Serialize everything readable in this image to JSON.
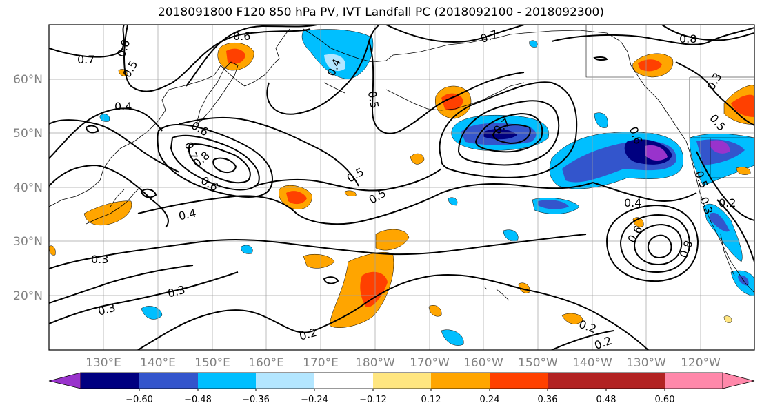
{
  "title": "2018091800 F120 850 hPa PV, IVT Landfall PC (2018092100 - 2018092300)",
  "map": {
    "lat_labels": [
      "60°N",
      "50°N",
      "40°N",
      "30°N",
      "20°N"
    ],
    "lon_labels": [
      "130°E",
      "140°E",
      "150°E",
      "160°E",
      "170°E",
      "180°W",
      "170°W",
      "160°W",
      "150°W",
      "140°W",
      "130°W",
      "120°W"
    ],
    "contour_labels": [
      "0.6",
      "0.7",
      "0.6",
      "0.5",
      "0.4",
      "0.4",
      "0.5",
      "0.7",
      "0.8",
      "0.3",
      "0.5",
      "0.6",
      "0.7",
      "0.7",
      "0.8",
      "0.6",
      "0.5",
      "0.5",
      "0.6",
      "0.4",
      "0.5",
      "0.3",
      "0.6",
      "0.8",
      "0.3",
      "0.2",
      "0.2",
      "0.3",
      "0.3",
      "0.2",
      "0.2",
      "0.2"
    ]
  },
  "colorbar": {
    "tick_labels": [
      "−0.60",
      "−0.48",
      "−0.36",
      "−0.24",
      "−0.12",
      "0.12",
      "0.24",
      "0.36",
      "0.48",
      "0.60"
    ],
    "colors": [
      "#9933cc",
      "#000080",
      "#3355cc",
      "#00bfff",
      "#b3e6ff",
      "#ffffff",
      "#ffe680",
      "#ffa500",
      "#ff4000",
      "#b22222",
      "#ff88aa"
    ]
  }
}
